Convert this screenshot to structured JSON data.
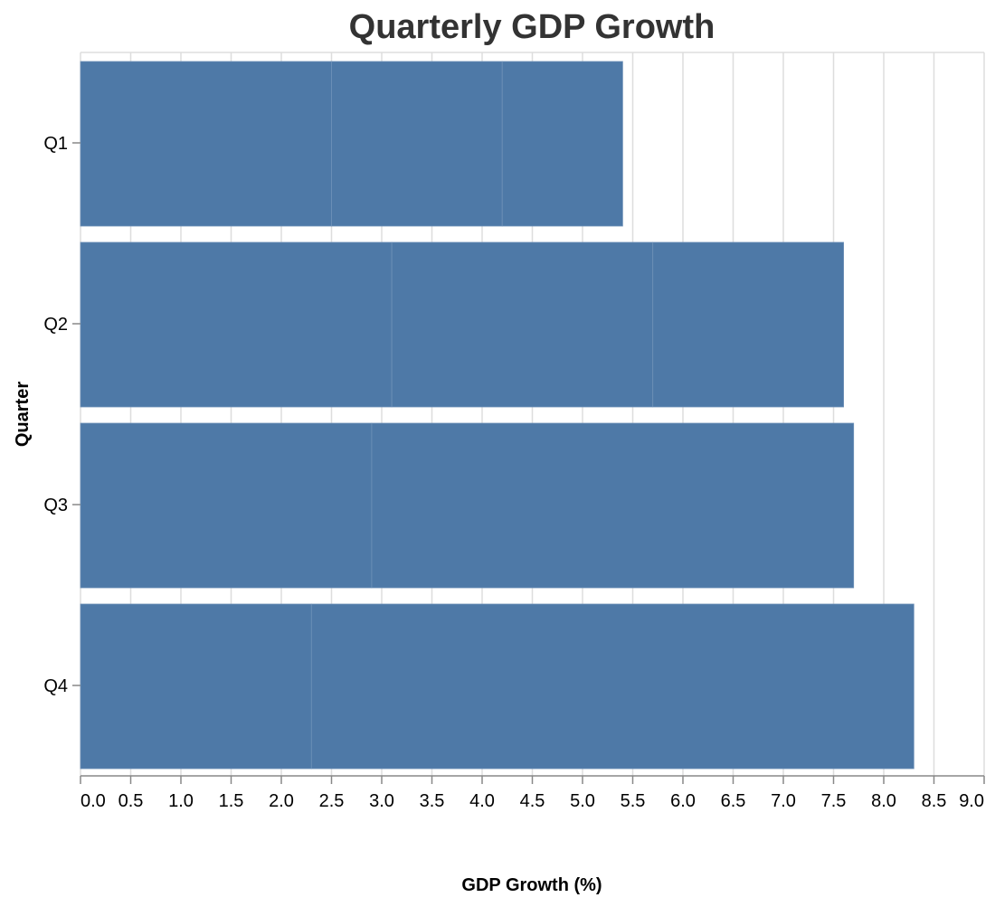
{
  "chart_data": {
    "type": "bar",
    "orientation": "horizontal",
    "stacked": true,
    "title": "Quarterly GDP Growth",
    "xlabel": "GDP Growth (%)",
    "ylabel": "Quarter",
    "categories": [
      "Q1",
      "Q2",
      "Q3",
      "Q4"
    ],
    "segments": [
      [
        2.5,
        1.7,
        1.2
      ],
      [
        3.1,
        2.6,
        1.9
      ],
      [
        2.9,
        4.8
      ],
      [
        2.3,
        6.0
      ]
    ],
    "totals": [
      5.4,
      7.6,
      7.7,
      8.3
    ],
    "xlim": [
      0,
      9
    ],
    "xticks": [
      "0.0",
      "0.5",
      "1.0",
      "1.5",
      "2.0",
      "2.5",
      "3.0",
      "3.5",
      "4.0",
      "4.5",
      "5.0",
      "5.5",
      "6.0",
      "6.5",
      "7.0",
      "7.5",
      "8.0",
      "8.5",
      "9.0"
    ],
    "grid": true,
    "legend": "none",
    "colors": {
      "bar": "#4e79a7",
      "grid": "#dddddd",
      "axis": "#888888",
      "title": "#333333"
    }
  }
}
